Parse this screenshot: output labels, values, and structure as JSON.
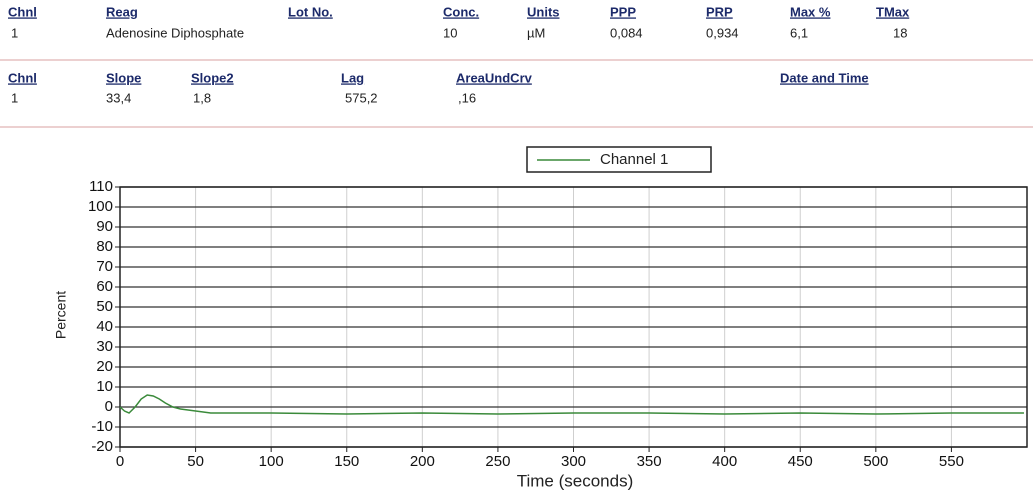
{
  "table1": {
    "columns": [
      {
        "header": "Chnl",
        "value": "1"
      },
      {
        "header": "Reag",
        "value": "Adenosine Diphosphate"
      },
      {
        "header": "Lot No."
      },
      {
        "header": "Conc.",
        "value": "10"
      },
      {
        "header": "Units",
        "value": "µM"
      },
      {
        "header": "PPP",
        "value": "0,084"
      },
      {
        "header": "PRP",
        "value": "0,934"
      },
      {
        "header": "Max %",
        "value": "6,1"
      },
      {
        "header": "TMax",
        "value": "18"
      }
    ]
  },
  "table2": {
    "columns": [
      {
        "header": "Chnl",
        "value": "1"
      },
      {
        "header": "Slope",
        "value": "33,4"
      },
      {
        "header": "Slope2",
        "value": "1,8"
      },
      {
        "header": "Lag",
        "value": "575,2"
      },
      {
        "header": "AreaUndCrv",
        "value": ",16"
      },
      {
        "header": "Date and Time"
      }
    ]
  },
  "chart_data": {
    "type": "line",
    "x_label": "Time (seconds)",
    "y_label": "Percent",
    "x": [
      0,
      3,
      6,
      10,
      14,
      18,
      22,
      26,
      30,
      35,
      40,
      45,
      50,
      60,
      80,
      100,
      150,
      200,
      250,
      300,
      350,
      400,
      450,
      500,
      550,
      598
    ],
    "series": [
      {
        "name": "Channel 1",
        "color": "#3a8a3a",
        "values": [
          0,
          -2,
          -3,
          0,
          4,
          6,
          5.5,
          4,
          2,
          0,
          -1,
          -1.5,
          -2,
          -3,
          -3,
          -3,
          -3.5,
          -3,
          -3.5,
          -3,
          -3,
          -3.5,
          -3,
          -3.5,
          -3,
          -3
        ]
      }
    ],
    "xlim": [
      0,
      600
    ],
    "xticks": [
      0,
      50,
      100,
      150,
      200,
      250,
      300,
      350,
      400,
      450,
      500,
      550
    ],
    "ylim": [
      -20,
      110
    ],
    "yticks": [
      -20,
      -10,
      0,
      10,
      20,
      30,
      40,
      50,
      60,
      70,
      80,
      90,
      100,
      110
    ],
    "grid": true
  }
}
